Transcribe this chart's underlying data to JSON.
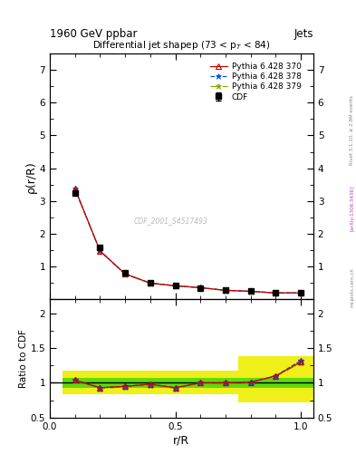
{
  "title_main": "1960 GeV ppbar",
  "title_right": "Jets",
  "plot_title": "Differential jet shapep (73 < p$_T$ < 84)",
  "ylabel_main": "ρ(r/R)",
  "ylabel_ratio": "Ratio to CDF",
  "xlabel": "r/R",
  "watermark": "CDF_2001_S4517493",
  "rivet_text": "Rivet 3.1.10; ≥ 2.8M events",
  "arxiv_text": "[arXiv:1306.3436]",
  "mcplots_text": "mcplots.cern.ch",
  "x_vals": [
    0.1,
    0.2,
    0.3,
    0.4,
    0.5,
    0.6,
    0.7,
    0.8,
    0.9,
    1.0
  ],
  "cdf_y": [
    3.25,
    1.6,
    0.82,
    0.5,
    0.44,
    0.35,
    0.28,
    0.25,
    0.21,
    0.2
  ],
  "cdf_yerr": [
    0.04,
    0.03,
    0.02,
    0.015,
    0.012,
    0.01,
    0.01,
    0.01,
    0.01,
    0.01
  ],
  "py370_y": [
    3.38,
    1.48,
    0.78,
    0.5,
    0.42,
    0.36,
    0.28,
    0.25,
    0.2,
    0.2
  ],
  "py378_y": [
    3.38,
    1.48,
    0.78,
    0.5,
    0.42,
    0.36,
    0.28,
    0.25,
    0.2,
    0.2
  ],
  "py379_y": [
    3.36,
    1.47,
    0.77,
    0.49,
    0.41,
    0.36,
    0.27,
    0.24,
    0.2,
    0.2
  ],
  "ratio370": [
    1.04,
    0.93,
    0.95,
    0.98,
    0.93,
    1.0,
    1.0,
    1.01,
    1.1,
    1.3
  ],
  "ratio378": [
    1.04,
    0.93,
    0.95,
    0.98,
    0.93,
    1.0,
    1.0,
    1.01,
    1.1,
    1.32
  ],
  "ratio379": [
    1.03,
    0.92,
    0.94,
    0.97,
    0.92,
    0.99,
    0.98,
    1.0,
    1.09,
    1.29
  ],
  "x_band_edges": [
    0.05,
    0.15,
    0.25,
    0.35,
    0.45,
    0.55,
    0.65,
    0.75,
    0.95,
    1.05
  ],
  "green_lo": [
    0.93,
    0.93,
    0.93,
    0.93,
    0.93,
    0.93,
    0.93,
    0.93,
    0.93
  ],
  "green_hi": [
    1.07,
    1.07,
    1.07,
    1.07,
    1.07,
    1.07,
    1.07,
    1.07,
    1.07
  ],
  "yellow_lo": [
    0.83,
    0.83,
    0.83,
    0.83,
    0.83,
    0.83,
    0.83,
    0.72,
    0.72
  ],
  "yellow_hi": [
    1.17,
    1.17,
    1.17,
    1.17,
    1.17,
    1.17,
    1.17,
    1.38,
    1.38
  ],
  "color_370": "#cc0000",
  "color_378": "#0055dd",
  "color_379": "#88aa00",
  "color_cdf": "#000000",
  "color_green": "#00cc00",
  "color_yellow": "#eeee00",
  "ylim_main": [
    0.0,
    7.5
  ],
  "yticks_main": [
    0,
    1,
    2,
    3,
    4,
    5,
    6,
    7
  ],
  "ylim_ratio": [
    0.5,
    2.2
  ],
  "yticks_ratio": [
    0.5,
    1.0,
    1.5,
    2.0
  ],
  "xlim": [
    0.0,
    1.05
  ],
  "xticks": [
    0.0,
    0.5,
    1.0
  ],
  "bg_color": "#ffffff",
  "axes_color": "#000000"
}
